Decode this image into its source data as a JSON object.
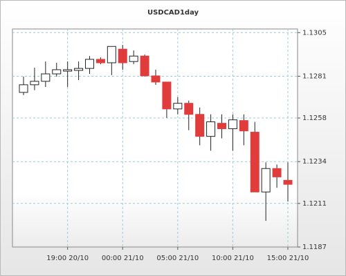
{
  "chart_data": {
    "type": "candlestick",
    "title": "USDCAD1day",
    "categories": [
      null,
      null,
      null,
      null,
      "19:00 20/10",
      null,
      null,
      null,
      null,
      "00:00 21/10",
      null,
      null,
      null,
      null,
      "05:00 21/10",
      null,
      null,
      null,
      null,
      "10:00 21/10",
      null,
      null,
      null,
      null,
      "15:00 21/10"
    ],
    "open": [
      1.12721,
      1.12763,
      1.12782,
      1.12823,
      1.12838,
      1.12842,
      1.12853,
      1.12903,
      1.12884,
      1.12959,
      1.12891,
      1.12921,
      1.12812,
      1.12778,
      1.1263,
      1.12661,
      1.126,
      1.12479,
      1.12551,
      1.12521,
      1.12566,
      1.12502,
      1.12173,
      1.12302,
      1.12237
    ],
    "high": [
      1.12808,
      1.12857,
      1.12891,
      1.12884,
      1.12891,
      1.12891,
      1.12921,
      1.12914,
      1.12974,
      1.12982,
      1.12952,
      1.12929,
      1.12846,
      1.12778,
      1.12695,
      1.12676,
      1.12638,
      1.126,
      1.126,
      1.126,
      1.126,
      1.12559,
      1.12336,
      1.12324,
      1.12336
    ],
    "low": [
      1.12706,
      1.12733,
      1.12751,
      1.12808,
      1.12751,
      1.12789,
      1.12823,
      1.12876,
      1.12816,
      1.12846,
      1.12876,
      1.12808,
      1.12763,
      1.12581,
      1.126,
      1.12513,
      1.1243,
      1.124,
      1.12468,
      1.124,
      1.1243,
      1.12173,
      1.12014,
      1.12196,
      1.1212
    ],
    "close": [
      1.12763,
      1.12782,
      1.12823,
      1.12846,
      1.12846,
      1.12853,
      1.12903,
      1.12884,
      1.12974,
      1.12884,
      1.12921,
      1.12812,
      1.12778,
      1.1263,
      1.12661,
      1.126,
      1.12479,
      1.12559,
      1.12521,
      1.1257,
      1.12509,
      1.12173,
      1.12302,
      1.12256,
      1.12215
    ],
    "up_color": "#ffffff",
    "down_color": "#e03c3c",
    "ylim": [
      1.1187,
      1.1307
    ],
    "yticks": [
      1.1187,
      1.1211,
      1.1234,
      1.1258,
      1.1281,
      1.1305
    ],
    "grid": true
  }
}
